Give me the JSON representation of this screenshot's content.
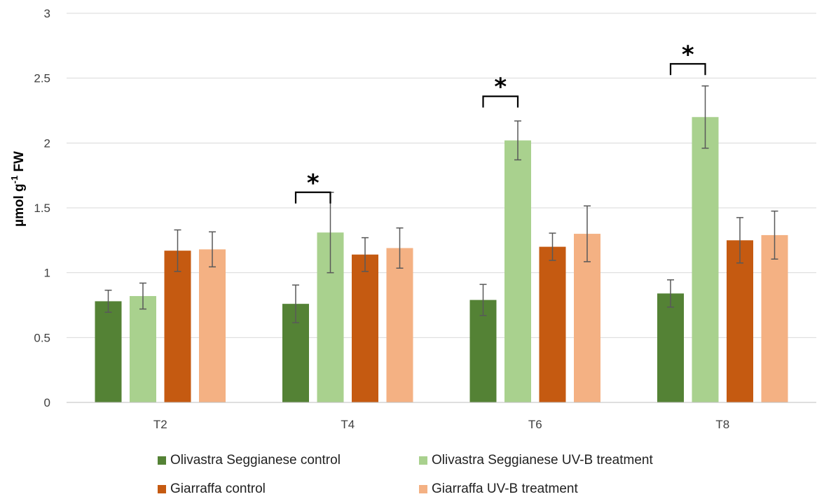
{
  "chart_data": {
    "type": "bar",
    "categories": [
      "T2",
      "T4",
      "T6",
      "T8"
    ],
    "ylabel": "µmol g-1 FW",
    "ylabel_main": "µmol  g",
    "ylabel_sup": "-1",
    "ylabel_tail": " FW",
    "ylim": [
      0,
      3
    ],
    "yticks": [
      0,
      0.5,
      1,
      1.5,
      2,
      2.5,
      3
    ],
    "ytick_labels": [
      "0",
      "0.5",
      "1",
      "1.5",
      "2",
      "2.5",
      "3"
    ],
    "grid": true,
    "legend_position": "bottom",
    "series": [
      {
        "name": "Olivastra Seggianese control",
        "color": "#548235",
        "values": [
          0.78,
          0.76,
          0.79,
          0.84
        ],
        "errors": [
          0.085,
          0.145,
          0.12,
          0.105
        ]
      },
      {
        "name": "Olivastra Seggianese UV-B treatment",
        "color": "#A9D18E",
        "values": [
          0.82,
          1.31,
          2.02,
          2.2
        ],
        "errors": [
          0.1,
          0.31,
          0.15,
          0.24
        ]
      },
      {
        "name": "Giarraffa control",
        "color": "#C55A11",
        "values": [
          1.17,
          1.14,
          1.2,
          1.25
        ],
        "errors": [
          0.16,
          0.13,
          0.105,
          0.175
        ]
      },
      {
        "name": "Giarraffa  UV-B treatment",
        "color": "#F4B183",
        "values": [
          1.18,
          1.19,
          1.3,
          1.29
        ],
        "errors": [
          0.135,
          0.155,
          0.215,
          0.185
        ]
      }
    ],
    "annotations": [
      {
        "text": "*",
        "category": "T4",
        "y": 1.62
      },
      {
        "text": "*",
        "category": "T6",
        "y": 2.36
      },
      {
        "text": "*",
        "category": "T8",
        "y": 2.61
      }
    ]
  }
}
